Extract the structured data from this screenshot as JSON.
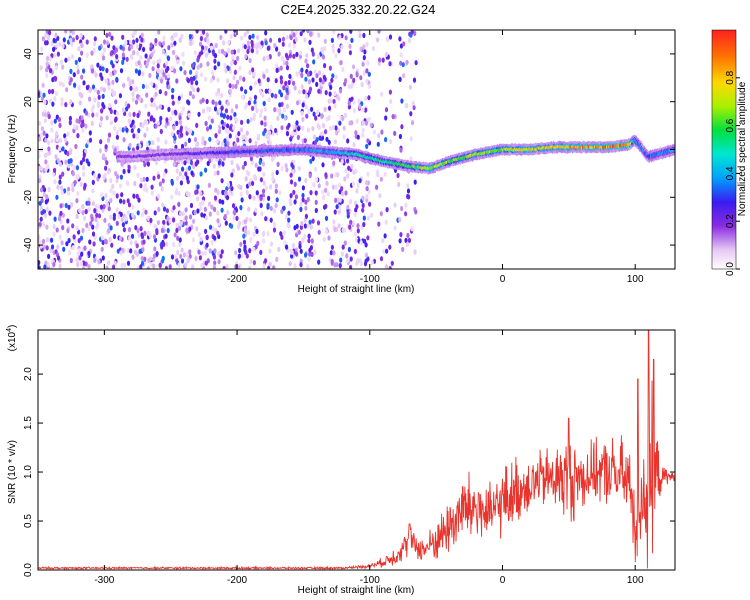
{
  "title": "C2E4.2025.332.20.22.G24",
  "chart_data": [
    {
      "type": "heatmap",
      "name": "spectrogram",
      "xlabel": "Height of straight line (km)",
      "ylabel": "Frequency (Hz)",
      "xlim": [
        -350,
        130
      ],
      "ylim": [
        -50,
        50
      ],
      "xticks": [
        -300,
        -200,
        -100,
        0,
        100
      ],
      "xtick_labels": [
        "-300",
        "-200",
        "-100",
        "0",
        "100"
      ],
      "yticks": [
        -40,
        -20,
        0,
        20,
        40
      ],
      "ytick_labels": [
        "-40",
        "-20",
        "0",
        "20",
        "40"
      ],
      "noise_region_x": [
        -350,
        -65
      ],
      "signal_track": {
        "x": [
          -280,
          -250,
          -200,
          -150,
          -110,
          -90,
          -70,
          -55,
          -40,
          -20,
          0,
          20,
          40,
          60,
          80,
          95,
          100,
          110,
          130
        ],
        "freq": [
          -3,
          -2,
          -1,
          0,
          -2,
          -5,
          -7,
          -8,
          -5,
          -2,
          0,
          0,
          1,
          1,
          1,
          2,
          4,
          -3,
          0
        ],
        "amplitude": [
          0.2,
          0.2,
          0.3,
          0.35,
          0.5,
          0.55,
          0.6,
          0.75,
          0.65,
          0.7,
          0.7,
          0.8,
          0.8,
          0.85,
          0.9,
          0.9,
          0.4,
          0.35,
          0.4
        ]
      },
      "colorbar": {
        "label": "Normalized spectral amplitude",
        "range": [
          0,
          1
        ],
        "ticks": [
          0.0,
          0.2,
          0.4,
          0.6,
          0.8
        ],
        "tick_labels": [
          "0.0",
          "0.2",
          "0.4",
          "0.6",
          "0.8"
        ]
      }
    },
    {
      "type": "line",
      "name": "snr",
      "xlabel": "Height of straight line (km)",
      "ylabel": "SNR (10 * v/v)",
      "y_multiplier": "(x10",
      "y_multiplier_exp": "4",
      "y_multiplier_close": ")",
      "xlim": [
        -350,
        130
      ],
      "ylim": [
        0,
        2.45
      ],
      "xticks": [
        -300,
        -200,
        -100,
        0,
        100
      ],
      "xtick_labels": [
        "-300",
        "-200",
        "-100",
        "0",
        "100"
      ],
      "yticks": [
        0.0,
        0.5,
        1.0,
        1.5,
        2.0
      ],
      "ytick_labels": [
        "0.0",
        "0.5",
        "1.0",
        "1.5",
        "2.0"
      ],
      "color": "#e8342c",
      "envelope": {
        "x": [
          -350,
          -120,
          -100,
          -90,
          -80,
          -70,
          -60,
          -50,
          -40,
          -30,
          -20,
          -10,
          0,
          10,
          20,
          30,
          40,
          50,
          60,
          70,
          80,
          90,
          95,
          100,
          105,
          110,
          115,
          120,
          130
        ],
        "mean": [
          0.02,
          0.02,
          0.04,
          0.08,
          0.15,
          0.3,
          0.2,
          0.3,
          0.45,
          0.6,
          0.65,
          0.55,
          0.7,
          0.8,
          0.88,
          0.92,
          0.95,
          0.9,
          0.95,
          1.0,
          1.0,
          0.95,
          0.9,
          0.5,
          0.8,
          0.85,
          0.95,
          0.95,
          0.95
        ],
        "spread": [
          0.01,
          0.01,
          0.02,
          0.05,
          0.1,
          0.15,
          0.12,
          0.2,
          0.3,
          0.35,
          0.4,
          0.3,
          0.35,
          0.35,
          0.3,
          0.3,
          0.35,
          0.45,
          0.35,
          0.3,
          0.35,
          0.4,
          0.4,
          0.5,
          0.6,
          1.2,
          0.6,
          0.1,
          0.05
        ]
      },
      "peaks": [
        {
          "x": -70,
          "y": 0.47
        },
        {
          "x": -30,
          "y": 0.85
        },
        {
          "x": 50,
          "y": 1.55
        },
        {
          "x": 102,
          "y": 1.95
        },
        {
          "x": 110,
          "y": 2.45
        },
        {
          "x": 114,
          "y": 2.15
        }
      ]
    }
  ]
}
